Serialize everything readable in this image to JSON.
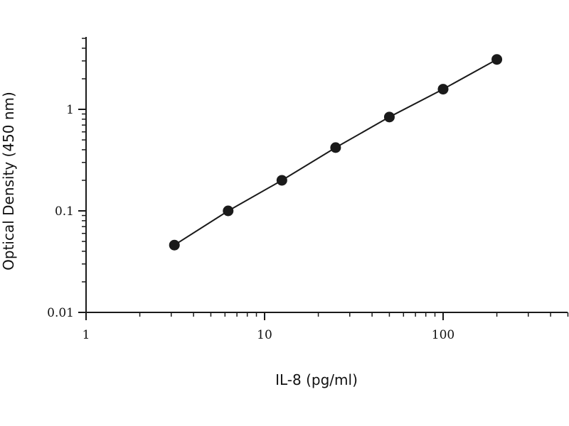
{
  "chart_data": {
    "type": "scatter",
    "title": "",
    "xlabel": "IL-8 (pg/ml)",
    "ylabel": "Optical Density (450 nm)",
    "xscale": "log",
    "yscale": "log",
    "xlim": [
      1,
      500
    ],
    "ylim": [
      0.01,
      5
    ],
    "x_ticks": [
      {
        "value": 1,
        "label": "1"
      },
      {
        "value": 10,
        "label": "10"
      },
      {
        "value": 100,
        "label": "100"
      }
    ],
    "y_ticks": [
      {
        "value": 0.01,
        "label": "0.01"
      },
      {
        "value": 0.1,
        "label": "0.1"
      },
      {
        "value": 1,
        "label": "1"
      }
    ],
    "grid": false,
    "series": [
      {
        "x": [
          3.125,
          6.25,
          12.5,
          25,
          50,
          100,
          200
        ],
        "y": [
          0.046,
          0.1,
          0.2,
          0.42,
          0.84,
          1.58,
          3.1
        ],
        "marker": "filled-circle",
        "line": true,
        "color": "#1a1a1a"
      }
    ]
  }
}
